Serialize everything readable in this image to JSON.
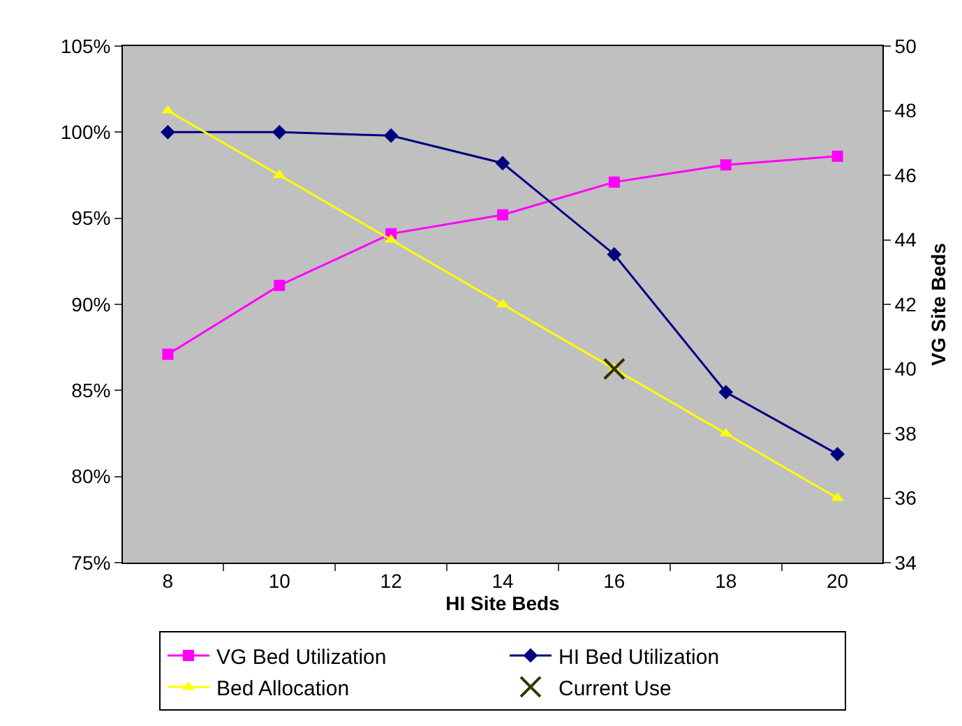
{
  "chart_data": {
    "type": "line",
    "xlabel": "HI Site Beds",
    "y2label": "VG Site Beds",
    "categories": [
      "8",
      "10",
      "12",
      "14",
      "16",
      "18",
      "20"
    ],
    "series": [
      {
        "name": "VG Bed Utilization",
        "color": "#ff00ff",
        "marker": "square",
        "values": [
          87.1,
          91.1,
          94.1,
          95.2,
          97.1,
          98.1,
          98.6
        ]
      },
      {
        "name": "HI Bed Utilization",
        "color": "#000080",
        "marker": "diamond",
        "values": [
          100.0,
          100.0,
          99.8,
          98.2,
          92.9,
          84.9,
          81.3
        ]
      },
      {
        "name": "Bed Allocation",
        "color": "#ffff00",
        "marker": "triangle",
        "axis": "y2",
        "values": [
          48,
          46,
          44,
          42,
          40,
          38,
          36
        ]
      },
      {
        "name": "Current Use",
        "type": "scatter",
        "color": "#333300",
        "marker": "cross",
        "axis": "y2",
        "x": [
          "16"
        ],
        "values": [
          40
        ]
      }
    ],
    "ylim": [
      75,
      105
    ],
    "yticks": [
      {
        "value": 75,
        "label": "75%"
      },
      {
        "value": 80,
        "label": "80%"
      },
      {
        "value": 85,
        "label": "85%"
      },
      {
        "value": 90,
        "label": "90%"
      },
      {
        "value": 95,
        "label": "95%"
      },
      {
        "value": 100,
        "label": "100%"
      },
      {
        "value": 105,
        "label": "105%"
      }
    ],
    "y2lim": [
      34,
      50
    ],
    "y2ticks": [
      34,
      36,
      38,
      40,
      42,
      44,
      46,
      48,
      50
    ],
    "grid": false,
    "legend": "bottom",
    "line_style": "solid"
  }
}
